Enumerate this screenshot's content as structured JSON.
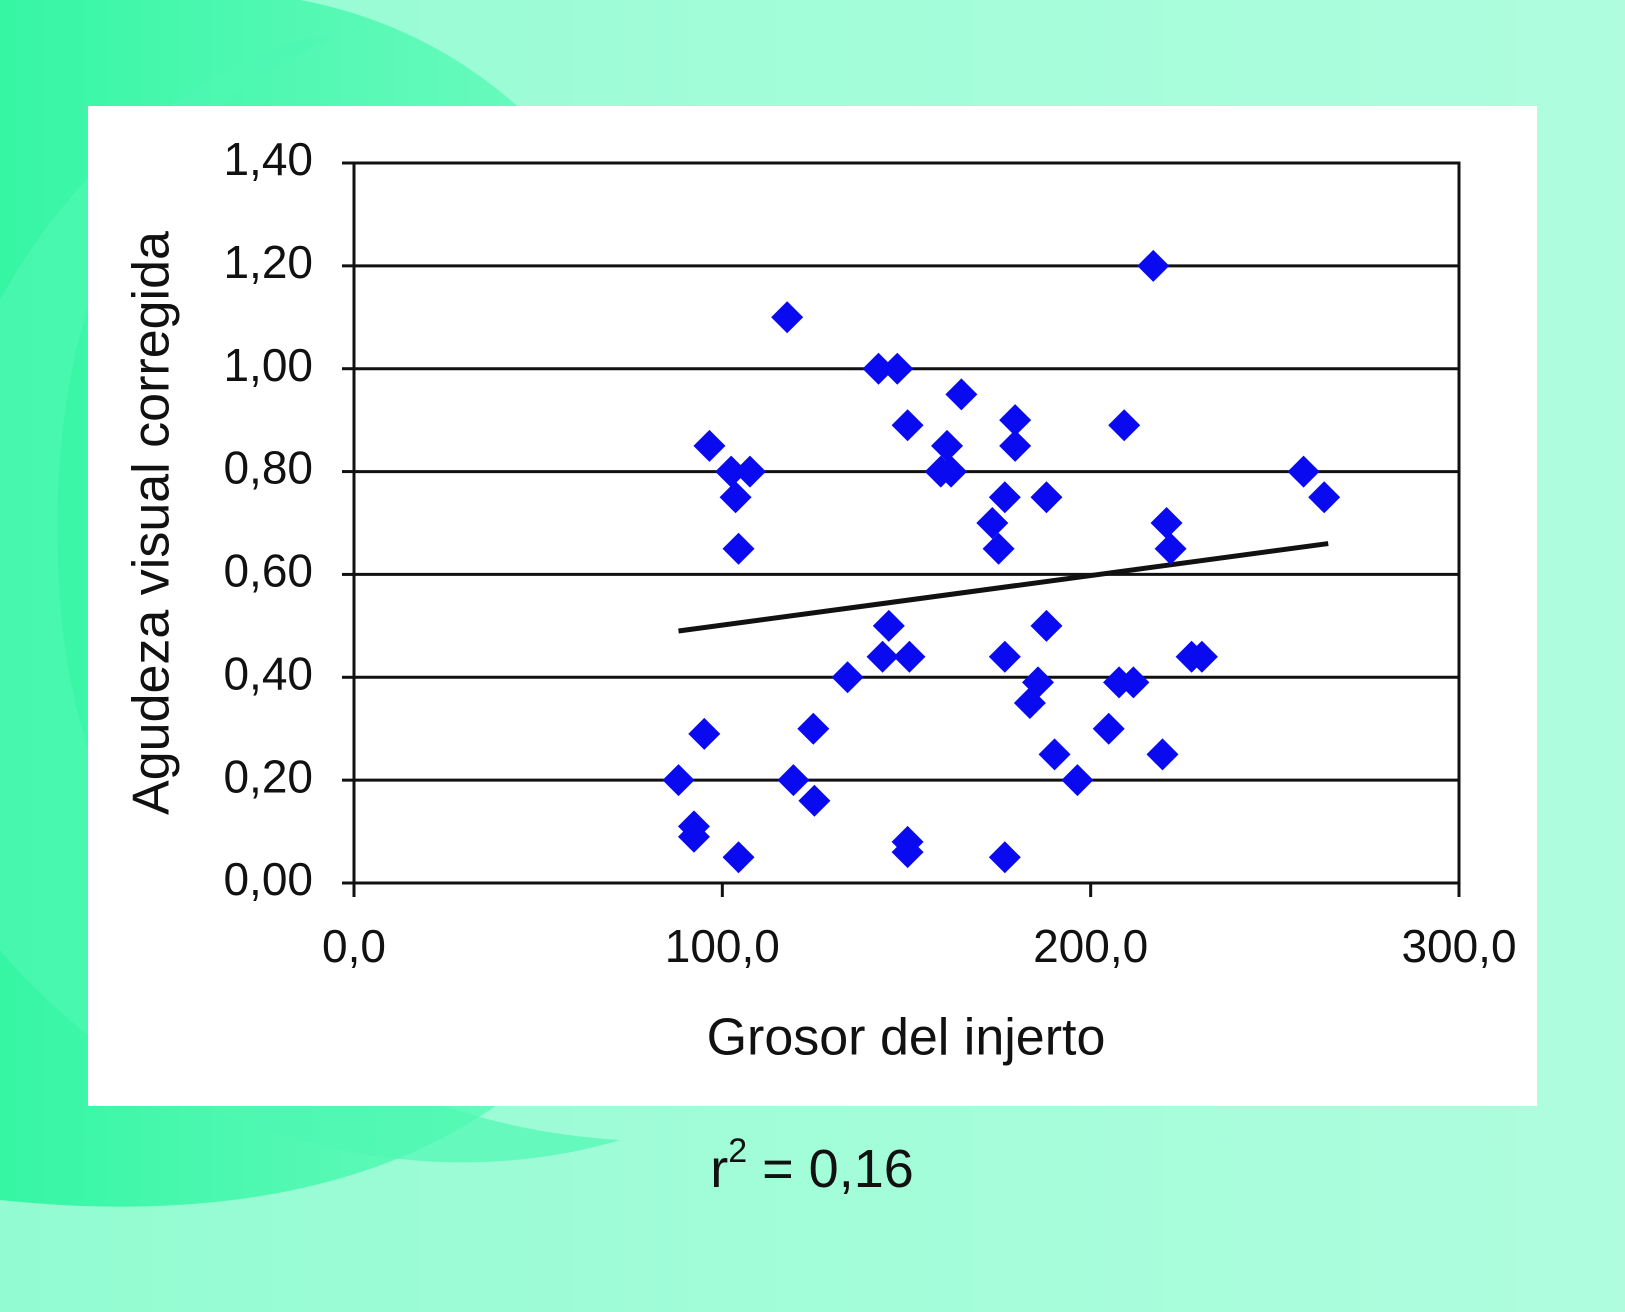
{
  "chart_data": {
    "type": "scatter",
    "x_label": "Grosor del injerto",
    "y_label": "Agudeza visual corregida",
    "annotation": [
      "r",
      "2",
      " = 0,16"
    ],
    "xlim": [
      0,
      300
    ],
    "xticks": [
      {
        "value": 0,
        "label": "0,0"
      },
      {
        "value": 100,
        "label": "100,0"
      },
      {
        "value": 200,
        "label": "200,0"
      },
      {
        "value": 300,
        "label": "300,0"
      }
    ],
    "ylim": [
      0,
      1.4
    ],
    "yticks": [
      {
        "value": 0,
        "label": "0,00"
      },
      {
        "value": 0.2,
        "label": "0,20"
      },
      {
        "value": 0.4,
        "label": "0,40"
      },
      {
        "value": 0.6,
        "label": "0,60"
      },
      {
        "value": 0.8,
        "label": "0,80"
      },
      {
        "value": 1.0,
        "label": "1,00"
      },
      {
        "value": 1.2,
        "label": "1,20"
      },
      {
        "value": 1.4,
        "label": "1,40"
      }
    ],
    "grid": true,
    "color": "#0a0af0",
    "x": [
      88.1,
      92.3,
      92.3,
      95.1,
      96.5,
      102.4,
      103.6,
      104.4,
      107.5,
      104.4,
      117.6,
      119.3,
      124.7,
      125.0,
      134.0,
      142.4,
      147.5,
      143.5,
      145.2,
      150.8,
      150.3,
      150.3,
      150.3,
      159.3,
      162.1,
      161.0,
      164.9,
      173.3,
      175.0,
      176.7,
      176.7,
      176.7,
      179.5,
      179.5,
      185.7,
      183.5,
      188.0,
      188.0,
      190.2,
      196.4,
      204.9,
      207.7,
      211.6,
      209.1,
      217.0,
      219.5,
      220.6,
      221.7,
      227.4,
      230.2,
      257.8,
      263.4
    ],
    "values": [
      0.2,
      0.11,
      0.09,
      0.29,
      0.85,
      0.8,
      0.75,
      0.65,
      0.8,
      0.05,
      1.1,
      0.2,
      0.3,
      0.16,
      0.4,
      1.0,
      1.0,
      0.44,
      0.5,
      0.44,
      0.89,
      0.08,
      0.06,
      0.8,
      0.8,
      0.85,
      0.95,
      0.7,
      0.65,
      0.75,
      0.44,
      0.05,
      0.9,
      0.85,
      0.39,
      0.35,
      0.5,
      0.75,
      0.25,
      0.2,
      0.3,
      0.39,
      0.39,
      0.89,
      1.2,
      0.25,
      0.7,
      0.65,
      0.44,
      0.44,
      0.8,
      0.75
    ],
    "trendline": {
      "x": [
        88.1,
        264.5
      ],
      "values": [
        0.49,
        0.66
      ],
      "color": "#111111"
    }
  }
}
